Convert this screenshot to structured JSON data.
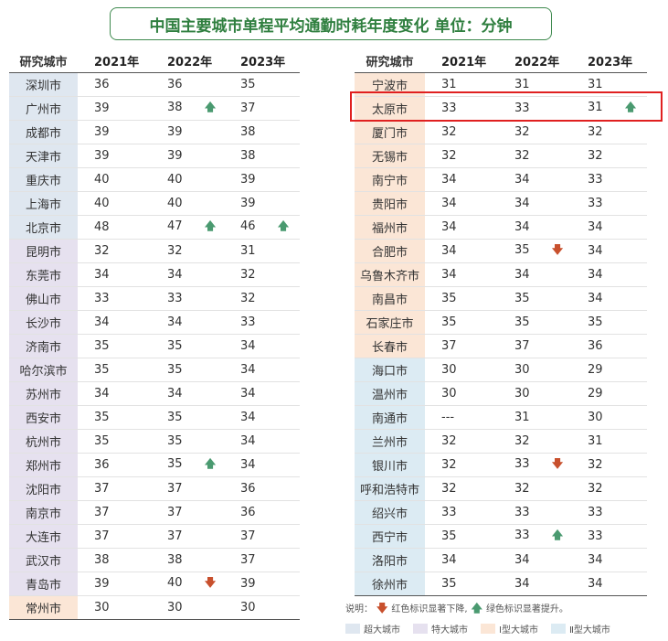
{
  "title": "中国主要城市单程平均通勤时耗年度变化  单位：分钟",
  "headers": [
    "研究城市",
    "2021年",
    "2022年",
    "2023年"
  ],
  "left_rows": [
    {
      "city": "深圳市",
      "cat": "s1",
      "y2021": "36",
      "y2022": "36",
      "a2022": "",
      "y2023": "35",
      "a2023": ""
    },
    {
      "city": "广州市",
      "cat": "s1",
      "y2021": "39",
      "y2022": "38",
      "a2022": "up",
      "y2023": "37",
      "a2023": ""
    },
    {
      "city": "成都市",
      "cat": "s1",
      "y2021": "39",
      "y2022": "39",
      "a2022": "",
      "y2023": "38",
      "a2023": ""
    },
    {
      "city": "天津市",
      "cat": "s1",
      "y2021": "39",
      "y2022": "39",
      "a2022": "",
      "y2023": "38",
      "a2023": ""
    },
    {
      "city": "重庆市",
      "cat": "s1",
      "y2021": "40",
      "y2022": "40",
      "a2022": "",
      "y2023": "39",
      "a2023": ""
    },
    {
      "city": "上海市",
      "cat": "s1",
      "y2021": "40",
      "y2022": "40",
      "a2022": "",
      "y2023": "39",
      "a2023": ""
    },
    {
      "city": "北京市",
      "cat": "s1",
      "y2021": "48",
      "y2022": "47",
      "a2022": "up",
      "y2023": "46",
      "a2023": "up"
    },
    {
      "city": "昆明市",
      "cat": "s2",
      "y2021": "32",
      "y2022": "32",
      "a2022": "",
      "y2023": "31",
      "a2023": ""
    },
    {
      "city": "东莞市",
      "cat": "s2",
      "y2021": "34",
      "y2022": "34",
      "a2022": "",
      "y2023": "32",
      "a2023": ""
    },
    {
      "city": "佛山市",
      "cat": "s2",
      "y2021": "33",
      "y2022": "33",
      "a2022": "",
      "y2023": "32",
      "a2023": ""
    },
    {
      "city": "长沙市",
      "cat": "s2",
      "y2021": "34",
      "y2022": "34",
      "a2022": "",
      "y2023": "33",
      "a2023": ""
    },
    {
      "city": "济南市",
      "cat": "s2",
      "y2021": "35",
      "y2022": "35",
      "a2022": "",
      "y2023": "34",
      "a2023": ""
    },
    {
      "city": "哈尔滨市",
      "cat": "s2",
      "y2021": "35",
      "y2022": "35",
      "a2022": "",
      "y2023": "34",
      "a2023": ""
    },
    {
      "city": "苏州市",
      "cat": "s2",
      "y2021": "34",
      "y2022": "34",
      "a2022": "",
      "y2023": "34",
      "a2023": ""
    },
    {
      "city": "西安市",
      "cat": "s2",
      "y2021": "35",
      "y2022": "35",
      "a2022": "",
      "y2023": "34",
      "a2023": ""
    },
    {
      "city": "杭州市",
      "cat": "s2",
      "y2021": "35",
      "y2022": "35",
      "a2022": "",
      "y2023": "34",
      "a2023": ""
    },
    {
      "city": "郑州市",
      "cat": "s2",
      "y2021": "36",
      "y2022": "35",
      "a2022": "up",
      "y2023": "34",
      "a2023": ""
    },
    {
      "city": "沈阳市",
      "cat": "s2",
      "y2021": "37",
      "y2022": "37",
      "a2022": "",
      "y2023": "36",
      "a2023": ""
    },
    {
      "city": "南京市",
      "cat": "s2",
      "y2021": "37",
      "y2022": "37",
      "a2022": "",
      "y2023": "36",
      "a2023": ""
    },
    {
      "city": "大连市",
      "cat": "s2",
      "y2021": "37",
      "y2022": "37",
      "a2022": "",
      "y2023": "37",
      "a2023": ""
    },
    {
      "city": "武汉市",
      "cat": "s2",
      "y2021": "38",
      "y2022": "38",
      "a2022": "",
      "y2023": "37",
      "a2023": ""
    },
    {
      "city": "青岛市",
      "cat": "s2",
      "y2021": "39",
      "y2022": "40",
      "a2022": "down",
      "y2023": "39",
      "a2023": ""
    },
    {
      "city": "常州市",
      "cat": "i",
      "y2021": "30",
      "y2022": "30",
      "a2022": "",
      "y2023": "30",
      "a2023": ""
    }
  ],
  "right_rows": [
    {
      "city": "宁波市",
      "cat": "i",
      "y2021": "31",
      "y2022": "31",
      "a2022": "",
      "y2023": "31",
      "a2023": ""
    },
    {
      "city": "太原市",
      "cat": "i",
      "y2021": "33",
      "y2022": "33",
      "a2022": "",
      "y2023": "31",
      "a2023": "up"
    },
    {
      "city": "厦门市",
      "cat": "i",
      "y2021": "32",
      "y2022": "32",
      "a2022": "",
      "y2023": "32",
      "a2023": ""
    },
    {
      "city": "无锡市",
      "cat": "i",
      "y2021": "32",
      "y2022": "32",
      "a2022": "",
      "y2023": "32",
      "a2023": ""
    },
    {
      "city": "南宁市",
      "cat": "i",
      "y2021": "34",
      "y2022": "34",
      "a2022": "",
      "y2023": "33",
      "a2023": ""
    },
    {
      "city": "贵阳市",
      "cat": "i",
      "y2021": "34",
      "y2022": "34",
      "a2022": "",
      "y2023": "33",
      "a2023": ""
    },
    {
      "city": "福州市",
      "cat": "i",
      "y2021": "34",
      "y2022": "34",
      "a2022": "",
      "y2023": "34",
      "a2023": ""
    },
    {
      "city": "合肥市",
      "cat": "i",
      "y2021": "34",
      "y2022": "35",
      "a2022": "down",
      "y2023": "34",
      "a2023": ""
    },
    {
      "city": "乌鲁木齐市",
      "cat": "i",
      "y2021": "34",
      "y2022": "34",
      "a2022": "",
      "y2023": "34",
      "a2023": ""
    },
    {
      "city": "南昌市",
      "cat": "i",
      "y2021": "35",
      "y2022": "35",
      "a2022": "",
      "y2023": "34",
      "a2023": ""
    },
    {
      "city": "石家庄市",
      "cat": "i",
      "y2021": "35",
      "y2022": "35",
      "a2022": "",
      "y2023": "35",
      "a2023": ""
    },
    {
      "city": "长春市",
      "cat": "i",
      "y2021": "37",
      "y2022": "37",
      "a2022": "",
      "y2023": "36",
      "a2023": ""
    },
    {
      "city": "海口市",
      "cat": "ii",
      "y2021": "30",
      "y2022": "30",
      "a2022": "",
      "y2023": "29",
      "a2023": ""
    },
    {
      "city": "温州市",
      "cat": "ii",
      "y2021": "30",
      "y2022": "30",
      "a2022": "",
      "y2023": "29",
      "a2023": ""
    },
    {
      "city": "南通市",
      "cat": "ii",
      "y2021": "---",
      "y2022": "31",
      "a2022": "",
      "y2023": "30",
      "a2023": ""
    },
    {
      "city": "兰州市",
      "cat": "ii",
      "y2021": "32",
      "y2022": "32",
      "a2022": "",
      "y2023": "31",
      "a2023": ""
    },
    {
      "city": "银川市",
      "cat": "ii",
      "y2021": "32",
      "y2022": "33",
      "a2022": "down",
      "y2023": "32",
      "a2023": ""
    },
    {
      "city": "呼和浩特市",
      "cat": "ii",
      "y2021": "32",
      "y2022": "32",
      "a2022": "",
      "y2023": "32",
      "a2023": ""
    },
    {
      "city": "绍兴市",
      "cat": "ii",
      "y2021": "33",
      "y2022": "33",
      "a2022": "",
      "y2023": "33",
      "a2023": ""
    },
    {
      "city": "西宁市",
      "cat": "ii",
      "y2021": "35",
      "y2022": "33",
      "a2022": "up",
      "y2023": "33",
      "a2023": ""
    },
    {
      "city": "洛阳市",
      "cat": "ii",
      "y2021": "34",
      "y2022": "34",
      "a2022": "",
      "y2023": "34",
      "a2023": ""
    },
    {
      "city": "徐州市",
      "cat": "ii",
      "y2021": "35",
      "y2022": "34",
      "a2022": "",
      "y2023": "34",
      "a2023": ""
    }
  ],
  "note": {
    "prefix": "说明：",
    "red_text": "红色标识显著下降,",
    "green_text": "绿色标识显著提升。"
  },
  "legend": [
    {
      "label": "超大城市",
      "color": "#dfe7f0"
    },
    {
      "label": "特大城市",
      "color": "#e6e1ef"
    },
    {
      "label": "Ⅰ型大城市",
      "color": "#fbe6d6"
    },
    {
      "label": "Ⅱ型大城市",
      "color": "#dcebf3"
    }
  ],
  "colors": {
    "up_arrow": "#4a9a70",
    "down_arrow": "#c8502d",
    "highlight": "#e02020",
    "title": "#2f7f3f"
  }
}
